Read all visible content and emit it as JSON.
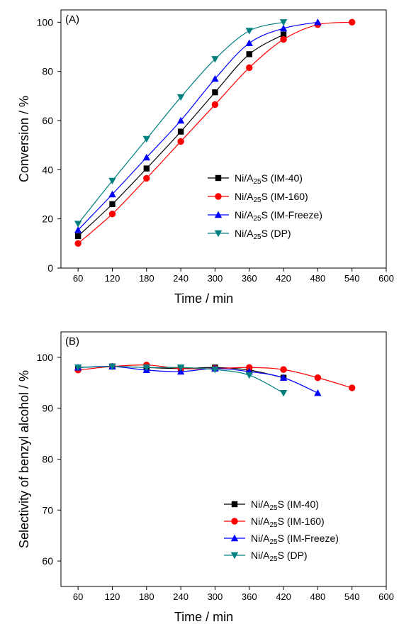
{
  "chart_data": [
    {
      "panel_label": "(A)",
      "type": "line",
      "xlabel": "Time / min",
      "ylabel": "Conversion / %",
      "xlim": [
        30,
        600
      ],
      "ylim": [
        0,
        105
      ],
      "xticks": [
        60,
        120,
        180,
        240,
        300,
        360,
        420,
        480,
        540,
        600
      ],
      "yticks": [
        0,
        20,
        40,
        60,
        80,
        100
      ],
      "legend_position": "lower-right",
      "series": [
        {
          "name": "Ni/A25S (IM-40)",
          "name_parts": [
            "Ni/A",
            "25",
            "S (IM-40)"
          ],
          "color": "#000000",
          "marker": "square",
          "x": [
            60,
            120,
            180,
            240,
            300,
            360,
            420
          ],
          "y": [
            13,
            26,
            40.5,
            55.5,
            71.5,
            87,
            95
          ]
        },
        {
          "name": "Ni/A25S (IM-160)",
          "name_parts": [
            "Ni/A",
            "25",
            "S (IM-160)"
          ],
          "color": "#ff0000",
          "marker": "circle",
          "x": [
            60,
            120,
            180,
            240,
            300,
            360,
            420,
            480,
            540
          ],
          "y": [
            10,
            22,
            36.5,
            51.5,
            66.5,
            81.5,
            93,
            99,
            100
          ]
        },
        {
          "name": "Ni/A25S (IM-Freeze)",
          "name_parts": [
            "Ni/A",
            "25",
            "S (IM-Freeze)"
          ],
          "color": "#0000ff",
          "marker": "triangle-up",
          "x": [
            60,
            120,
            180,
            240,
            300,
            360,
            420,
            480
          ],
          "y": [
            15.5,
            30,
            45,
            60,
            77,
            91.5,
            97.5,
            100
          ]
        },
        {
          "name": "Ni/A25S (DP)",
          "name_parts": [
            "Ni/A",
            "25",
            "S (DP)"
          ],
          "color": "#008080",
          "marker": "triangle-down",
          "x": [
            60,
            120,
            180,
            240,
            300,
            360,
            420
          ],
          "y": [
            18,
            35.5,
            52.5,
            69.5,
            85,
            96.5,
            100
          ]
        }
      ]
    },
    {
      "panel_label": "(B)",
      "type": "line",
      "xlabel": "Time / min",
      "ylabel": "Selectivity of benzyl alcohol / %",
      "xlim": [
        30,
        600
      ],
      "ylim": [
        55,
        105
      ],
      "xticks": [
        60,
        120,
        180,
        240,
        300,
        360,
        420,
        480,
        540,
        600
      ],
      "yticks": [
        60,
        70,
        80,
        90,
        100
      ],
      "legend_position": "lower-right",
      "series": [
        {
          "name": "Ni/A25S (IM-40)",
          "name_parts": [
            "Ni/A",
            "25",
            "S (IM-40)"
          ],
          "color": "#000000",
          "marker": "square",
          "x": [
            60,
            120,
            180,
            240,
            300,
            360,
            420
          ],
          "y": [
            98,
            98.2,
            98,
            97.8,
            98,
            97.5,
            96
          ]
        },
        {
          "name": "Ni/A25S (IM-160)",
          "name_parts": [
            "Ni/A",
            "25",
            "S (IM-160)"
          ],
          "color": "#ff0000",
          "marker": "circle",
          "x": [
            60,
            120,
            180,
            240,
            300,
            360,
            420,
            480,
            540
          ],
          "y": [
            97.5,
            98.2,
            98.5,
            97.8,
            97.8,
            98,
            97.6,
            96,
            94
          ]
        },
        {
          "name": "Ni/A25S (IM-Freeze)",
          "name_parts": [
            "Ni/A",
            "25",
            "S (IM-Freeze)"
          ],
          "color": "#0000ff",
          "marker": "triangle-up",
          "x": [
            60,
            120,
            180,
            240,
            300,
            360,
            420,
            480
          ],
          "y": [
            98,
            98.2,
            97.5,
            97.2,
            97.8,
            97.2,
            96,
            93
          ]
        },
        {
          "name": "Ni/A25S (DP)",
          "name_parts": [
            "Ni/A",
            "25",
            "S (DP)"
          ],
          "color": "#008080",
          "marker": "triangle-down",
          "x": [
            60,
            120,
            180,
            240,
            300,
            360,
            420
          ],
          "y": [
            98,
            98.2,
            98,
            98,
            97.6,
            96.5,
            93
          ]
        }
      ]
    }
  ]
}
